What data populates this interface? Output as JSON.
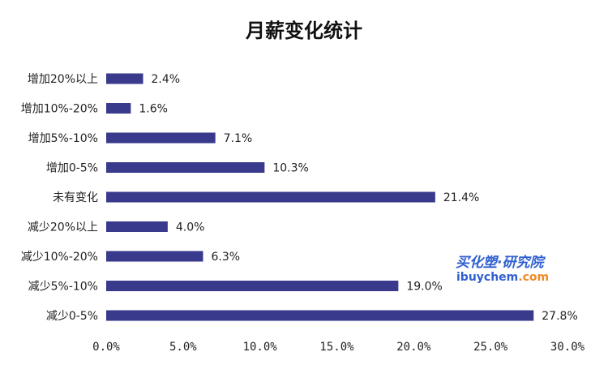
{
  "chart_data": {
    "type": "bar",
    "orientation": "horizontal",
    "title": "月薪变化统计",
    "categories": [
      "增加20%以上",
      "增加10%-20%",
      "增加5%-10%",
      "增加0-5%",
      "未有变化",
      "减少20%以上",
      "减少10%-20%",
      "减少5%-10%",
      "减少0-5%"
    ],
    "values": [
      2.4,
      1.6,
      7.1,
      10.3,
      21.4,
      4.0,
      6.3,
      19.0,
      27.8
    ],
    "value_labels": [
      "2.4%",
      "1.6%",
      "7.1%",
      "10.3%",
      "21.4%",
      "4.0%",
      "6.3%",
      "19.0%",
      "27.8%"
    ],
    "xlim": [
      0,
      30
    ],
    "x_ticks": [
      "0.0%",
      "5.0%",
      "10.0%",
      "15.0%",
      "20.0%",
      "25.0%",
      "30.0%"
    ],
    "grid": false,
    "legend": "none",
    "bar_color": "#3a3a8c"
  },
  "watermark": {
    "brand": "买化塑·研究院",
    "site_blue": "ibuychem",
    "site_orange": ".com",
    "colors": {
      "blue": "#2f5fd0",
      "orange": "#f08a24"
    }
  }
}
